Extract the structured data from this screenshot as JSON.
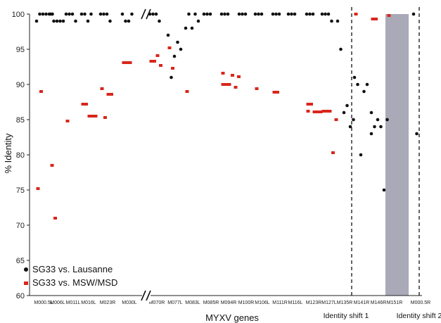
{
  "chart_data": {
    "type": "scatter",
    "xlabel": "MYXV genes",
    "ylabel": "% Identity",
    "ylim": [
      60,
      100
    ],
    "yticks": [
      60,
      65,
      70,
      75,
      80,
      85,
      90,
      95,
      100
    ],
    "grid": false,
    "legend_position": "bottom-left",
    "categories": [
      "M000.5L",
      "M006L",
      "M011L",
      "M016L",
      "M023R",
      "M030L",
      "M070R",
      "M077L",
      "M083L",
      "M085R",
      "M094R",
      "M100R",
      "M106L",
      "M111R",
      "M116L",
      "M123R",
      "M127L",
      "M135R",
      "M141R",
      "M146R",
      "M151R",
      "M000.5R"
    ],
    "markers": [
      {
        "label": "Identity shift 1",
        "style": "dashed-line",
        "between": [
          "M135R",
          "M141R"
        ]
      },
      {
        "label": "Identity shift 2",
        "style": "dashed-line",
        "at": "M000.5R"
      }
    ],
    "highlight_band": {
      "from_category": "M146R",
      "to_category": "M151R",
      "color": "#a9a9b8"
    },
    "axis_breaks_after": [
      "M030L"
    ],
    "series": [
      {
        "name": "SG33 vs. Lausanne",
        "color": "#111111",
        "points": [
          [
            "M000.5L",
            99
          ],
          [
            "M000.5L",
            100
          ],
          [
            "M000.5L",
            100
          ],
          [
            "M000.5L",
            100
          ],
          [
            "M000.5L",
            100
          ],
          [
            "M000.5L",
            100
          ],
          [
            "M006L",
            100
          ],
          [
            "M006L",
            99
          ],
          [
            "M006L",
            99
          ],
          [
            "M006L",
            99
          ],
          [
            "M006L",
            99
          ],
          [
            "M011L",
            100
          ],
          [
            "M011L",
            100
          ],
          [
            "M011L",
            100
          ],
          [
            "M011L",
            99
          ],
          [
            "M016L",
            100
          ],
          [
            "M016L",
            100
          ],
          [
            "M016L",
            99
          ],
          [
            "M016L",
            100
          ],
          [
            "M023R",
            100
          ],
          [
            "M023R",
            100
          ],
          [
            "M023R",
            100
          ],
          [
            "M023R",
            99
          ],
          [
            "M030L",
            100
          ],
          [
            "M030L",
            99
          ],
          [
            "M030L",
            99
          ],
          [
            "M030L",
            100
          ],
          [
            "M070R",
            100
          ],
          [
            "M070R",
            100
          ],
          [
            "M070R",
            100
          ],
          [
            "M070R",
            99
          ],
          [
            "M077L",
            97
          ],
          [
            "M077L",
            91
          ],
          [
            "M077L",
            94
          ],
          [
            "M077L",
            96
          ],
          [
            "M077L",
            95
          ],
          [
            "M083L",
            98
          ],
          [
            "M083L",
            100
          ],
          [
            "M083L",
            98
          ],
          [
            "M083L",
            100
          ],
          [
            "M083L",
            99
          ],
          [
            "M085R",
            100
          ],
          [
            "M085R",
            100
          ],
          [
            "M085R",
            100
          ],
          [
            "M094R",
            100
          ],
          [
            "M094R",
            100
          ],
          [
            "M094R",
            100
          ],
          [
            "M100R",
            100
          ],
          [
            "M100R",
            100
          ],
          [
            "M100R",
            100
          ],
          [
            "M106L",
            100
          ],
          [
            "M106L",
            100
          ],
          [
            "M106L",
            100
          ],
          [
            "M111R",
            100
          ],
          [
            "M111R",
            100
          ],
          [
            "M111R",
            100
          ],
          [
            "M116L",
            100
          ],
          [
            "M116L",
            100
          ],
          [
            "M116L",
            100
          ],
          [
            "M123R",
            100
          ],
          [
            "M123R",
            100
          ],
          [
            "M123R",
            100
          ],
          [
            "M127L",
            100
          ],
          [
            "M127L",
            100
          ],
          [
            "M127L",
            100
          ],
          [
            "M127L",
            99
          ],
          [
            "M135R",
            99
          ],
          [
            "M135R",
            95
          ],
          [
            "M135R",
            86
          ],
          [
            "M135R",
            87
          ],
          [
            "M135R",
            84
          ],
          [
            "M135R",
            85
          ],
          [
            "M141R",
            91
          ],
          [
            "M141R",
            90
          ],
          [
            "M141R",
            80
          ],
          [
            "M141R",
            89
          ],
          [
            "M141R",
            90
          ],
          [
            "M146R",
            86
          ],
          [
            "M146R",
            84
          ],
          [
            "M146R",
            85
          ],
          [
            "M146R",
            84
          ],
          [
            "M146R",
            75
          ],
          [
            "M146R",
            85
          ],
          [
            "M146R",
            83
          ],
          [
            "M000.5R",
            100
          ],
          [
            "M000.5R",
            83
          ]
        ]
      },
      {
        "name": "SG33 vs. MSW/MSD",
        "color": "#d9261c",
        "points": [
          [
            "M000.5L",
            75.2
          ],
          [
            "M000.5L",
            89
          ],
          [
            "M006L",
            78.5
          ],
          [
            "M006L",
            71
          ],
          [
            "M011L",
            84.8
          ],
          [
            "M016L",
            87.2
          ],
          [
            "M016L",
            87.2
          ],
          [
            "M016L",
            85.5
          ],
          [
            "M016L",
            85.5
          ],
          [
            "M016L",
            85.5
          ],
          [
            "M023R",
            89.4
          ],
          [
            "M023R",
            85.3
          ],
          [
            "M023R",
            88.6
          ],
          [
            "M023R",
            88.6
          ],
          [
            "M030L",
            93.1
          ],
          [
            "M030L",
            93.1
          ],
          [
            "M030L",
            93.1
          ],
          [
            "M070R",
            93.3
          ],
          [
            "M070R",
            93.3
          ],
          [
            "M070R",
            94.1
          ],
          [
            "M070R",
            92.7
          ],
          [
            "M077L",
            95.2
          ],
          [
            "M077L",
            92.3
          ],
          [
            "M083L",
            89
          ],
          [
            "M094R",
            90
          ],
          [
            "M094R",
            90
          ],
          [
            "M094R",
            90
          ],
          [
            "M094R",
            91.3
          ],
          [
            "M094R",
            89.6
          ],
          [
            "M094R",
            91.1
          ],
          [
            "M094R",
            91.6
          ],
          [
            "M106L",
            89.4
          ],
          [
            "M111R",
            88.9
          ],
          [
            "M111R",
            88.9
          ],
          [
            "M123R",
            87.2
          ],
          [
            "M123R",
            87.2
          ],
          [
            "M123R",
            86.1
          ],
          [
            "M123R",
            86.1
          ],
          [
            "M123R",
            86.1
          ],
          [
            "M123R",
            86.2
          ],
          [
            "M123R",
            86.2
          ],
          [
            "M127L",
            86.2
          ],
          [
            "M127L",
            86.2
          ],
          [
            "M127L",
            86.2
          ],
          [
            "M127L",
            80.3
          ],
          [
            "M127L",
            85
          ],
          [
            "M141R",
            100
          ],
          [
            "M146R",
            99.3
          ],
          [
            "M146R",
            99.3
          ],
          [
            "M151R",
            99.8
          ]
        ]
      }
    ]
  },
  "legend": {
    "lausanne": "SG33 vs. Lausanne",
    "msw": "SG33 vs. MSW/MSD"
  },
  "labels": {
    "ylabel": "% Identity",
    "xlabel": "MYXV genes",
    "shift1": "Identity shift 1",
    "shift2": "Identity shift 2"
  }
}
